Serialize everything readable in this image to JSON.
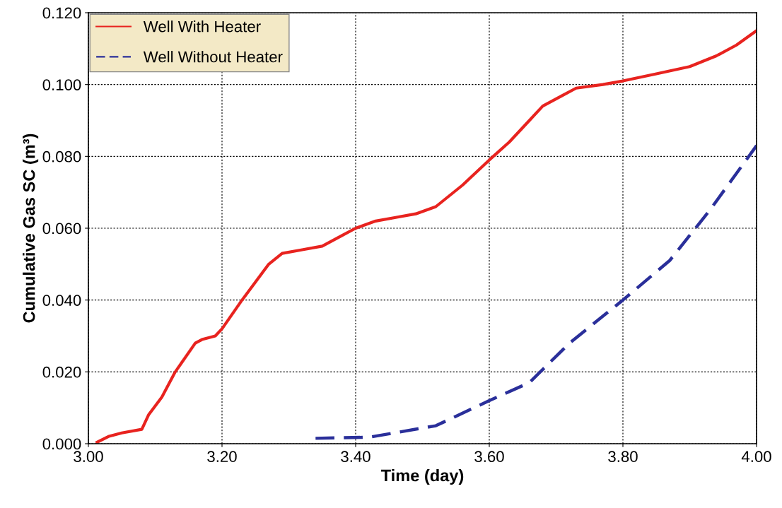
{
  "chart_data": {
    "type": "line",
    "xlabel": "Time (day)",
    "ylabel": "Cumulative Gas SC (m³)",
    "series": [
      {
        "name": "Well With Heater",
        "color": "#e8231f",
        "line_style": "solid",
        "x": [
          3.013,
          3.03,
          3.05,
          3.08,
          3.09,
          3.11,
          3.13,
          3.16,
          3.17,
          3.19,
          3.2,
          3.23,
          3.27,
          3.29,
          3.32,
          3.35,
          3.38,
          3.4,
          3.43,
          3.46,
          3.49,
          3.52,
          3.56,
          3.6,
          3.63,
          3.66,
          3.68,
          3.71,
          3.73,
          3.77,
          3.8,
          3.85,
          3.9,
          3.94,
          3.97,
          4.0
        ],
        "values": [
          0.0004,
          0.002,
          0.003,
          0.004,
          0.008,
          0.013,
          0.02,
          0.028,
          0.029,
          0.03,
          0.032,
          0.04,
          0.05,
          0.053,
          0.054,
          0.055,
          0.058,
          0.06,
          0.062,
          0.063,
          0.064,
          0.066,
          0.072,
          0.079,
          0.084,
          0.09,
          0.094,
          0.097,
          0.099,
          0.1,
          0.101,
          0.103,
          0.105,
          0.108,
          0.111,
          0.115
        ]
      },
      {
        "name": "Well Without Heater",
        "color": "#2a2f9a",
        "line_style": "dashed",
        "x": [
          3.34,
          3.42,
          3.52,
          3.6,
          3.66,
          3.72,
          3.8,
          3.87,
          3.93,
          4.0
        ],
        "values": [
          0.0015,
          0.0018,
          0.005,
          0.012,
          0.017,
          0.028,
          0.04,
          0.051,
          0.065,
          0.083
        ]
      }
    ],
    "xlim": [
      3.0,
      4.0
    ],
    "xticks": [
      {
        "value": 3.0,
        "label": "3.00"
      },
      {
        "value": 3.2,
        "label": "3.20"
      },
      {
        "value": 3.4,
        "label": "3.40"
      },
      {
        "value": 3.6,
        "label": "3.60"
      },
      {
        "value": 3.8,
        "label": "3.80"
      },
      {
        "value": 4.0,
        "label": "4.00"
      }
    ],
    "ylim": [
      0.0,
      0.12
    ],
    "yticks": [
      {
        "value": 0.0,
        "label": "0.000"
      },
      {
        "value": 0.02,
        "label": "0.020"
      },
      {
        "value": 0.04,
        "label": "0.040"
      },
      {
        "value": 0.06,
        "label": "0.060"
      },
      {
        "value": 0.08,
        "label": "0.080"
      },
      {
        "value": 0.1,
        "label": "0.100"
      },
      {
        "value": 0.12,
        "label": "0.120"
      }
    ],
    "grid": true,
    "legend": "top left",
    "marker": "none"
  }
}
